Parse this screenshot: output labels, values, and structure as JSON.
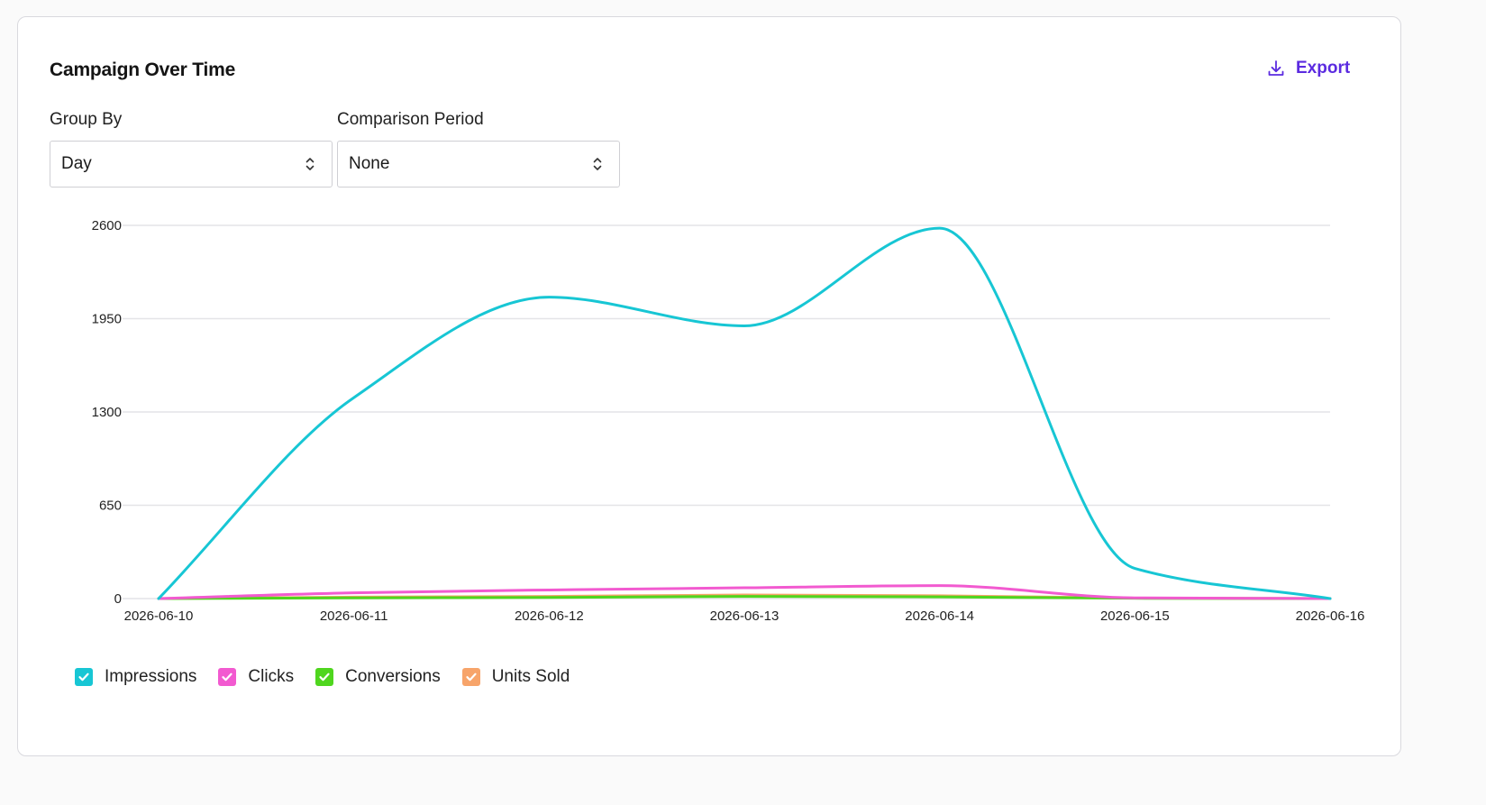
{
  "card": {
    "title": "Campaign Over Time",
    "export_label": "Export",
    "export_icon": "download-icon",
    "accent_color": "#5b2be0"
  },
  "controls": {
    "group_by": {
      "label": "Group By",
      "value": "Day",
      "icon": "chevron-up-down-icon"
    },
    "comparison": {
      "label": "Comparison Period",
      "value": "None",
      "icon": "chevron-up-down-icon"
    }
  },
  "chart_data": {
    "type": "line",
    "title": "",
    "xlabel": "",
    "ylabel": "",
    "x": [
      "2026-06-10",
      "2026-06-11",
      "2026-06-12",
      "2026-06-13",
      "2026-06-14",
      "2026-06-15",
      "2026-06-16"
    ],
    "ylim": [
      0,
      2600
    ],
    "yticks": [
      0,
      650,
      1300,
      1950,
      2600
    ],
    "grid": true,
    "smooth": true,
    "legend_position": "bottom-left",
    "series": [
      {
        "name": "Impressions",
        "color": "#17c6d4",
        "checked": true,
        "values": [
          0,
          1400,
          2100,
          1900,
          2580,
          210,
          0
        ]
      },
      {
        "name": "Clicks",
        "color": "#f25ad0",
        "checked": true,
        "values": [
          0,
          40,
          60,
          75,
          90,
          5,
          0
        ]
      },
      {
        "name": "Conversions",
        "color": "#4fd61e",
        "checked": true,
        "values": [
          0,
          5,
          8,
          15,
          12,
          2,
          0
        ]
      },
      {
        "name": "Units Sold",
        "color": "#f7a46a",
        "checked": true,
        "values": [
          0,
          10,
          15,
          25,
          20,
          3,
          0
        ]
      }
    ]
  }
}
